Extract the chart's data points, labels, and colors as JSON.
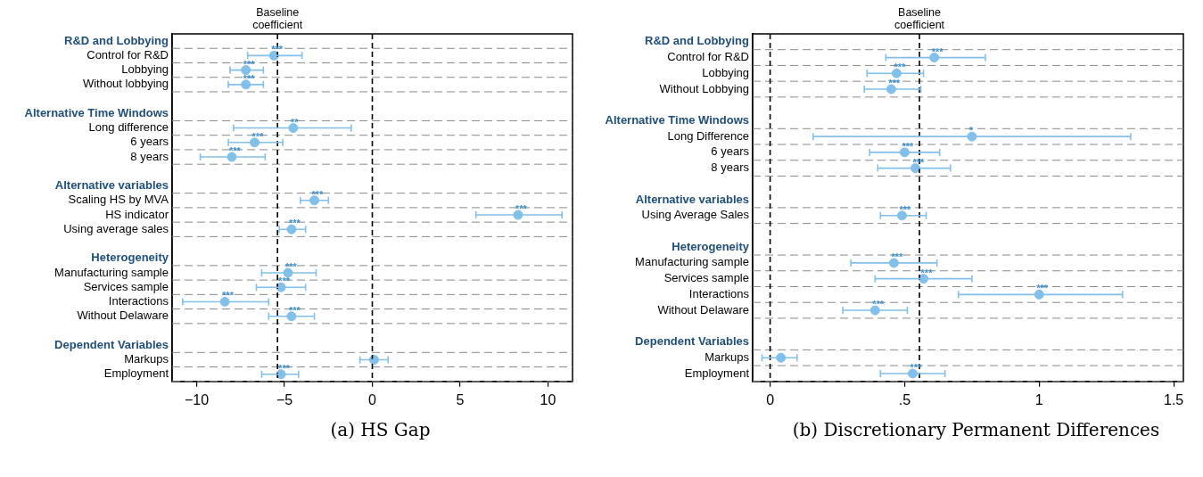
{
  "chart_data": [
    {
      "type": "scatter",
      "title": "(a) HS Gap",
      "orientation": "horizontal",
      "marker": "circle",
      "grid": "y",
      "legend": false,
      "categories": [
        "R&D and Lobbying",
        "Control for R&D",
        "Lobbying",
        "Without lobbying",
        null,
        "Alternative Time Windows",
        "Long difference",
        "6 years",
        "8 years",
        null,
        "Alternative variables",
        "Scaling HS by MVA",
        "HS indicator",
        "Using average sales",
        null,
        "Heterogeneity",
        "Manufacturing sample",
        "Services sample",
        "Interactions",
        "Without Delaware",
        null,
        "Dependent Variables",
        "Markups",
        "Employment"
      ],
      "series": [
        {
          "color": "#82c0ea",
          "values": [
            null,
            -5.6,
            -7.2,
            -7.2,
            null,
            null,
            -4.5,
            -6.7,
            -8.0,
            null,
            null,
            -3.3,
            8.3,
            -4.6,
            null,
            null,
            -4.8,
            -5.2,
            -8.4,
            -4.6,
            null,
            null,
            0.1,
            -5.2
          ],
          "errors": [
            null,
            [
              -7.1,
              -4.0
            ],
            [
              -8.1,
              -6.2
            ],
            [
              -8.2,
              -6.2
            ],
            null,
            null,
            [
              -7.9,
              -1.2
            ],
            [
              -8.2,
              -5.1
            ],
            [
              -9.8,
              -6.1
            ],
            null,
            null,
            [
              -4.1,
              -2.5
            ],
            [
              5.9,
              10.8
            ],
            [
              -5.3,
              -3.8
            ],
            null,
            null,
            [
              -6.3,
              -3.2
            ],
            [
              -6.6,
              -3.8
            ],
            [
              -10.8,
              -5.9
            ],
            [
              -5.9,
              -3.3
            ],
            null,
            null,
            [
              -0.7,
              0.9
            ],
            [
              -6.3,
              -4.2
            ]
          ],
          "value_labels": [
            null,
            "***",
            "***",
            "***",
            null,
            null,
            "**",
            "***",
            "***",
            null,
            null,
            "***",
            "***",
            "***",
            null,
            null,
            "***",
            "***",
            "***",
            "***",
            null,
            null,
            null,
            "***"
          ]
        }
      ],
      "xlim": [
        -11.4,
        11.4
      ],
      "xticks": [
        {
          "value": -10,
          "label": "−10"
        },
        {
          "value": -5,
          "label": "−5"
        },
        0,
        5,
        10
      ],
      "ref_lines": [
        {
          "axis": "x",
          "value": -5.4,
          "label": "Baseline coefficient",
          "line_style": "dashed",
          "color": "#000000"
        },
        {
          "axis": "x",
          "value": 0,
          "line_style": "dashed",
          "color": "#000000"
        }
      ]
    },
    {
      "type": "scatter",
      "title": "(b) Discretionary Permanent Differences",
      "orientation": "horizontal",
      "marker": "circle",
      "grid": "y",
      "legend": false,
      "categories": [
        "R&D and Lobbying",
        "Control for R&D",
        "Lobbying",
        "Without Lobbying",
        null,
        "Alternative Time Windows",
        "Long Difference",
        "6 years",
        "8 years",
        null,
        "Alternative variables",
        "Using Average Sales",
        null,
        "Heterogeneity",
        "Manufacturing sample",
        "Services sample",
        "Interactions",
        "Without Delaware",
        null,
        "Dependent Variables",
        "Markups",
        "Employment"
      ],
      "series": [
        {
          "color": "#82c0ea",
          "values": [
            null,
            0.61,
            0.47,
            0.45,
            null,
            null,
            0.75,
            0.5,
            0.54,
            null,
            null,
            0.49,
            null,
            null,
            0.46,
            0.57,
            1.0,
            0.39,
            null,
            null,
            0.04,
            0.53
          ],
          "errors": [
            null,
            [
              0.43,
              0.8
            ],
            [
              0.36,
              0.57
            ],
            [
              0.35,
              0.56
            ],
            null,
            null,
            [
              0.16,
              1.34
            ],
            [
              0.37,
              0.63
            ],
            [
              0.4,
              0.67
            ],
            null,
            null,
            [
              0.41,
              0.58
            ],
            null,
            null,
            [
              0.3,
              0.62
            ],
            [
              0.39,
              0.75
            ],
            [
              0.7,
              1.31
            ],
            [
              0.27,
              0.51
            ],
            null,
            null,
            [
              -0.03,
              0.1
            ],
            [
              0.41,
              0.65
            ]
          ],
          "value_labels": [
            null,
            "***",
            "***",
            "***",
            null,
            null,
            "*",
            "***",
            "***",
            null,
            null,
            "***",
            null,
            null,
            "***",
            "***",
            "***",
            "***",
            null,
            null,
            null,
            "***"
          ]
        }
      ],
      "xlim": [
        -0.065,
        1.536
      ],
      "xticks": [
        0,
        {
          "value": 0.5,
          "label": ".5"
        },
        1,
        1.5
      ],
      "ref_lines": [
        {
          "axis": "x",
          "value": 0.555,
          "label": "Baseline coefficient",
          "line_style": "dashed",
          "color": "#000000"
        },
        {
          "axis": "x",
          "value": 0,
          "line_style": "dashed",
          "color": "#000000"
        }
      ]
    }
  ]
}
